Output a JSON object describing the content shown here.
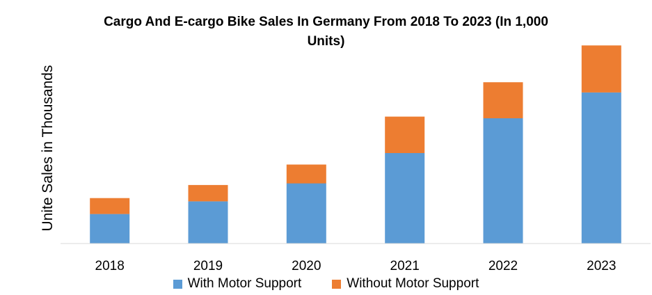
{
  "chart_data": {
    "type": "bar",
    "stacked": true,
    "title": "Cargo And E-cargo Bike Sales In Germany From 2018 To 2023 (In 1,000 Units)",
    "title_lines": [
      "Cargo And E-cargo Bike Sales In Germany From 2018 To 2023 (In 1,000",
      "Units)"
    ],
    "xlabel": "",
    "ylabel": "Unite Sales in Thousands",
    "categories": [
      "2018",
      "2019",
      "2020",
      "2021",
      "2022",
      "2023"
    ],
    "series": [
      {
        "name": "With Motor Support",
        "color": "#5B9BD5",
        "values": [
          72,
          103,
          147,
          221,
          306,
          369
        ]
      },
      {
        "name": "Without Motor Support",
        "color": "#ED7D31",
        "values": [
          39,
          40,
          46,
          89,
          88,
          115
        ]
      }
    ],
    "ylim": [
      0,
      510
    ],
    "y_ticks_shown": false,
    "grid": false,
    "legend_position": "bottom"
  }
}
